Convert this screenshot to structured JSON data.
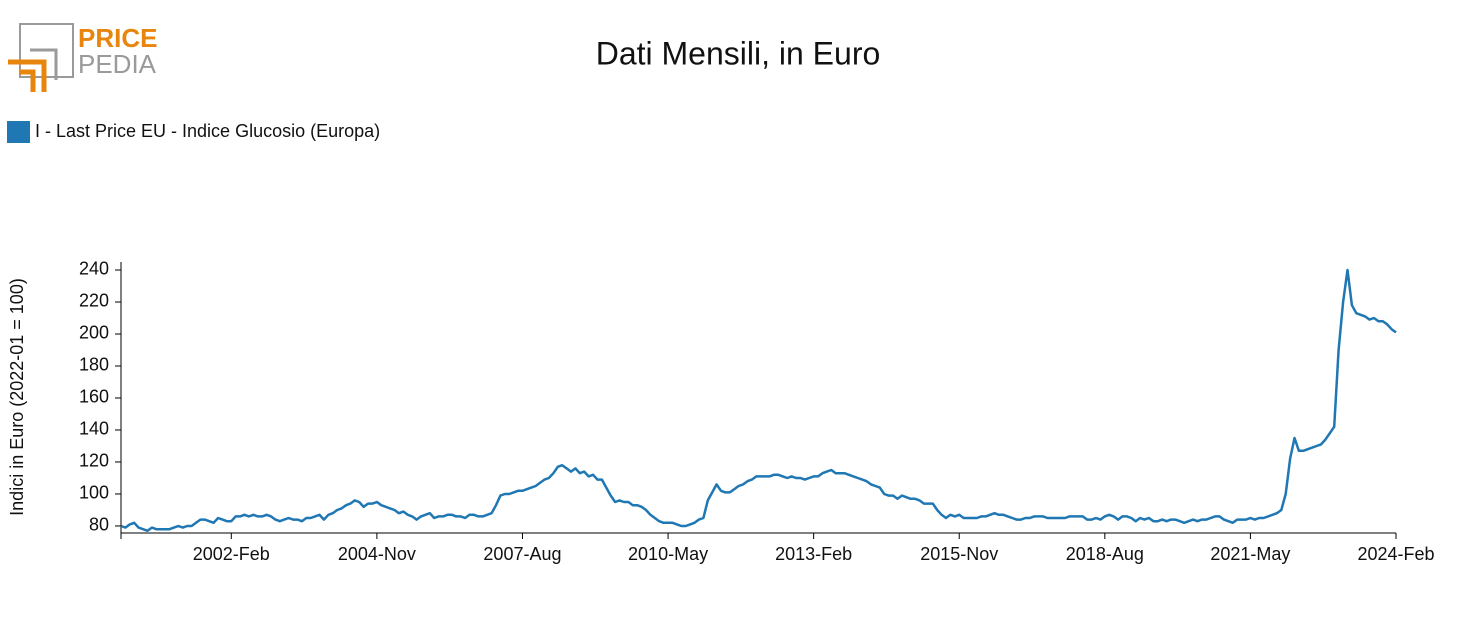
{
  "logo": {
    "line1": "PRICE",
    "line2": "PEDIA"
  },
  "chart_data": {
    "type": "line",
    "title": "Dati Mensili, in Euro",
    "y_label": "Indici in Euro (2022-01 = 100)",
    "x": [
      "2000-Jan",
      "2000-Feb",
      "2000-Mar",
      "2000-Apr",
      "2000-May",
      "2000-Jun",
      "2000-Jul",
      "2000-Aug",
      "2000-Sep",
      "2000-Oct",
      "2000-Nov",
      "2000-Dec",
      "2001-Jan",
      "2001-Feb",
      "2001-Mar",
      "2001-Apr",
      "2001-May",
      "2001-Jun",
      "2001-Jul",
      "2001-Aug",
      "2001-Sep",
      "2001-Oct",
      "2001-Nov",
      "2001-Dec",
      "2002-Jan",
      "2002-Feb",
      "2002-Mar",
      "2002-Apr",
      "2002-May",
      "2002-Jun",
      "2002-Jul",
      "2002-Aug",
      "2002-Sep",
      "2002-Oct",
      "2002-Nov",
      "2002-Dec",
      "2003-Jan",
      "2003-Feb",
      "2003-Mar",
      "2003-Apr",
      "2003-May",
      "2003-Jun",
      "2003-Jul",
      "2003-Aug",
      "2003-Sep",
      "2003-Oct",
      "2003-Nov",
      "2003-Dec",
      "2004-Jan",
      "2004-Feb",
      "2004-Mar",
      "2004-Apr",
      "2004-May",
      "2004-Jun",
      "2004-Jul",
      "2004-Aug",
      "2004-Sep",
      "2004-Oct",
      "2004-Nov",
      "2004-Dec",
      "2005-Jan",
      "2005-Feb",
      "2005-Mar",
      "2005-Apr",
      "2005-May",
      "2005-Jun",
      "2005-Jul",
      "2005-Aug",
      "2005-Sep",
      "2005-Oct",
      "2005-Nov",
      "2005-Dec",
      "2006-Jan",
      "2006-Feb",
      "2006-Mar",
      "2006-Apr",
      "2006-May",
      "2006-Jun",
      "2006-Jul",
      "2006-Aug",
      "2006-Sep",
      "2006-Oct",
      "2006-Nov",
      "2006-Dec",
      "2007-Jan",
      "2007-Feb",
      "2007-Mar",
      "2007-Apr",
      "2007-May",
      "2007-Jun",
      "2007-Jul",
      "2007-Aug",
      "2007-Sep",
      "2007-Oct",
      "2007-Nov",
      "2007-Dec",
      "2008-Jan",
      "2008-Feb",
      "2008-Mar",
      "2008-Apr",
      "2008-May",
      "2008-Jun",
      "2008-Jul",
      "2008-Aug",
      "2008-Sep",
      "2008-Oct",
      "2008-Nov",
      "2008-Dec",
      "2009-Jan",
      "2009-Feb",
      "2009-Mar",
      "2009-Apr",
      "2009-May",
      "2009-Jun",
      "2009-Jul",
      "2009-Aug",
      "2009-Sep",
      "2009-Oct",
      "2009-Nov",
      "2009-Dec",
      "2010-Jan",
      "2010-Feb",
      "2010-Mar",
      "2010-Apr",
      "2010-May",
      "2010-Jun",
      "2010-Jul",
      "2010-Aug",
      "2010-Sep",
      "2010-Oct",
      "2010-Nov",
      "2010-Dec",
      "2011-Jan",
      "2011-Feb",
      "2011-Mar",
      "2011-Apr",
      "2011-May",
      "2011-Jun",
      "2011-Jul",
      "2011-Aug",
      "2011-Sep",
      "2011-Oct",
      "2011-Nov",
      "2011-Dec",
      "2012-Jan",
      "2012-Feb",
      "2012-Mar",
      "2012-Apr",
      "2012-May",
      "2012-Jun",
      "2012-Jul",
      "2012-Aug",
      "2012-Sep",
      "2012-Oct",
      "2012-Nov",
      "2012-Dec",
      "2013-Jan",
      "2013-Feb",
      "2013-Mar",
      "2013-Apr",
      "2013-May",
      "2013-Jun",
      "2013-Jul",
      "2013-Aug",
      "2013-Sep",
      "2013-Oct",
      "2013-Nov",
      "2013-Dec",
      "2014-Jan",
      "2014-Feb",
      "2014-Mar",
      "2014-Apr",
      "2014-May",
      "2014-Jun",
      "2014-Jul",
      "2014-Aug",
      "2014-Sep",
      "2014-Oct",
      "2014-Nov",
      "2014-Dec",
      "2015-Jan",
      "2015-Feb",
      "2015-Mar",
      "2015-Apr",
      "2015-May",
      "2015-Jun",
      "2015-Jul",
      "2015-Aug",
      "2015-Sep",
      "2015-Oct",
      "2015-Nov",
      "2015-Dec",
      "2016-Jan",
      "2016-Feb",
      "2016-Mar",
      "2016-Apr",
      "2016-May",
      "2016-Jun",
      "2016-Jul",
      "2016-Aug",
      "2016-Sep",
      "2016-Oct",
      "2016-Nov",
      "2016-Dec",
      "2017-Jan",
      "2017-Feb",
      "2017-Mar",
      "2017-Apr",
      "2017-May",
      "2017-Jun",
      "2017-Jul",
      "2017-Aug",
      "2017-Sep",
      "2017-Oct",
      "2017-Nov",
      "2017-Dec",
      "2018-Jan",
      "2018-Feb",
      "2018-Mar",
      "2018-Apr",
      "2018-May",
      "2018-Jun",
      "2018-Jul",
      "2018-Aug",
      "2018-Sep",
      "2018-Oct",
      "2018-Nov",
      "2018-Dec",
      "2019-Jan",
      "2019-Feb",
      "2019-Mar",
      "2019-Apr",
      "2019-May",
      "2019-Jun",
      "2019-Jul",
      "2019-Aug",
      "2019-Sep",
      "2019-Oct",
      "2019-Nov",
      "2019-Dec",
      "2020-Jan",
      "2020-Feb",
      "2020-Mar",
      "2020-Apr",
      "2020-May",
      "2020-Jun",
      "2020-Jul",
      "2020-Aug",
      "2020-Sep",
      "2020-Oct",
      "2020-Nov",
      "2020-Dec",
      "2021-Jan",
      "2021-Feb",
      "2021-Mar",
      "2021-Apr",
      "2021-May",
      "2021-Jun",
      "2021-Jul",
      "2021-Aug",
      "2021-Sep",
      "2021-Oct",
      "2021-Nov",
      "2021-Dec",
      "2022-Jan",
      "2022-Feb",
      "2022-Mar",
      "2022-Apr",
      "2022-May",
      "2022-Jun",
      "2022-Jul",
      "2022-Aug",
      "2022-Sep",
      "2022-Oct",
      "2022-Nov",
      "2022-Dec",
      "2023-Jan",
      "2023-Feb",
      "2023-Mar",
      "2023-Apr",
      "2023-May",
      "2023-Jun",
      "2023-Jul",
      "2023-Aug",
      "2023-Sep",
      "2023-Oct",
      "2023-Nov",
      "2023-Dec",
      "2024-Jan",
      "2024-Feb"
    ],
    "series": [
      {
        "name": "I - Last Price EU - Indice Glucosio (Europa)",
        "color": "#1f77b4",
        "values": [
          80,
          79,
          81,
          82,
          79,
          78,
          77,
          79,
          78,
          78,
          78,
          78,
          79,
          80,
          79,
          80,
          80,
          82,
          84,
          84,
          83,
          82,
          85,
          84,
          83,
          83,
          86,
          86,
          87,
          86,
          87,
          86,
          86,
          87,
          86,
          84,
          83,
          84,
          85,
          84,
          84,
          83,
          85,
          85,
          86,
          87,
          84,
          87,
          88,
          90,
          91,
          93,
          94,
          96,
          95,
          92,
          94,
          94,
          95,
          93,
          92,
          91,
          90,
          88,
          89,
          87,
          86,
          84,
          86,
          87,
          88,
          85,
          86,
          86,
          87,
          87,
          86,
          86,
          85,
          87,
          87,
          86,
          86,
          87,
          88,
          93,
          99,
          100,
          100,
          101,
          102,
          102,
          103,
          104,
          105,
          107,
          109,
          110,
          113,
          117,
          118,
          116,
          114,
          116,
          113,
          114,
          111,
          112,
          109,
          109,
          104,
          99,
          95,
          96,
          95,
          95,
          93,
          93,
          92,
          90,
          87,
          85,
          83,
          82,
          82,
          82,
          81,
          80,
          80,
          81,
          82,
          84,
          85,
          96,
          101,
          106,
          102,
          101,
          101,
          103,
          105,
          106,
          108,
          109,
          111,
          111,
          111,
          111,
          112,
          112,
          111,
          110,
          111,
          110,
          110,
          109,
          110,
          111,
          111,
          113,
          114,
          115,
          113,
          113,
          113,
          112,
          111,
          110,
          109,
          108,
          106,
          105,
          104,
          100,
          99,
          99,
          97,
          99,
          98,
          97,
          97,
          96,
          94,
          94,
          94,
          90,
          87,
          85,
          87,
          86,
          87,
          85,
          85,
          85,
          85,
          86,
          86,
          87,
          88,
          87,
          87,
          86,
          85,
          84,
          84,
          85,
          85,
          86,
          86,
          86,
          85,
          85,
          85,
          85,
          85,
          86,
          86,
          86,
          86,
          84,
          84,
          85,
          84,
          86,
          87,
          86,
          84,
          86,
          86,
          85,
          83,
          85,
          84,
          85,
          83,
          83,
          84,
          83,
          84,
          84,
          83,
          82,
          83,
          84,
          83,
          84,
          84,
          85,
          86,
          86,
          84,
          83,
          82,
          84,
          84,
          84,
          85,
          84,
          85,
          85,
          86,
          87,
          88,
          90,
          100,
          122,
          135,
          127,
          127,
          128,
          129,
          130,
          131,
          134,
          138,
          142,
          190,
          220,
          240,
          218,
          213,
          212,
          211,
          209,
          210,
          208,
          208,
          206,
          203,
          201
        ]
      }
    ],
    "xticks": [
      "2002-Feb",
      "2004-Nov",
      "2007-Aug",
      "2010-May",
      "2013-Feb",
      "2015-Nov",
      "2018-Aug",
      "2021-May",
      "2024-Feb"
    ],
    "ylim": [
      75.6,
      245
    ],
    "yticks": [
      80,
      100,
      120,
      140,
      160,
      180,
      200,
      220,
      240
    ],
    "grid": false,
    "legend": "top-left"
  }
}
